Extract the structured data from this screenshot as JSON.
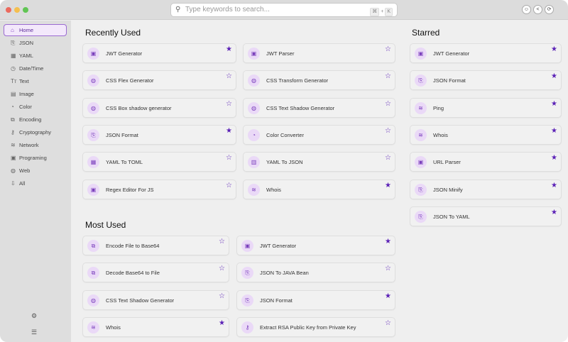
{
  "search": {
    "placeholder": "Type keywords to search...",
    "shortcut_key1": "⌘",
    "shortcut_plus": "+",
    "shortcut_key2": "K"
  },
  "toolbar": [
    {
      "icon": "feedback-icon",
      "glyph": "☺"
    },
    {
      "icon": "share-icon",
      "glyph": "<"
    },
    {
      "icon": "settings-icon",
      "glyph": "⟳"
    }
  ],
  "sidebar": {
    "items": [
      {
        "label": "Home",
        "icon": "home-icon",
        "glyph": "⌂",
        "active": true
      },
      {
        "label": "JSON",
        "icon": "json-icon",
        "glyph": "⎘"
      },
      {
        "label": "YAML",
        "icon": "yaml-icon",
        "glyph": "▦"
      },
      {
        "label": "Date/Time",
        "icon": "clock-icon",
        "glyph": "◷"
      },
      {
        "label": "Text",
        "icon": "text-icon",
        "glyph": "Tт"
      },
      {
        "label": "Image",
        "icon": "image-icon",
        "glyph": "▤"
      },
      {
        "label": "Color",
        "icon": "palette-icon",
        "glyph": "◔"
      },
      {
        "label": "Encoding",
        "icon": "encoding-icon",
        "glyph": "⧉"
      },
      {
        "label": "Cryptography",
        "icon": "key-icon",
        "glyph": "⚷"
      },
      {
        "label": "Network",
        "icon": "wifi-icon",
        "glyph": "≋"
      },
      {
        "label": "Programing",
        "icon": "terminal-icon",
        "glyph": "▣"
      },
      {
        "label": "Web",
        "icon": "globe-icon",
        "glyph": "◍"
      },
      {
        "label": "All",
        "icon": "all-icon",
        "glyph": "⇩"
      }
    ],
    "bottom": [
      {
        "icon": "gear-icon",
        "glyph": "⚙"
      },
      {
        "icon": "menu-icon",
        "glyph": "☰"
      }
    ]
  },
  "recently_used": {
    "title": "Recently Used",
    "items": [
      {
        "label": "JWT Generator",
        "glyph": "▣",
        "starred": true
      },
      {
        "label": "JWT Parser",
        "glyph": "▣",
        "starred": false
      },
      {
        "label": "CSS Flex Generator",
        "glyph": "◍",
        "starred": false
      },
      {
        "label": "CSS Transform Generator",
        "glyph": "◍",
        "starred": false
      },
      {
        "label": "CSS Box shadow generator",
        "glyph": "◍",
        "starred": false
      },
      {
        "label": "CSS Text Shadow Generator",
        "glyph": "◍",
        "starred": false
      },
      {
        "label": "JSON Format",
        "glyph": "⎘",
        "starred": true
      },
      {
        "label": "Color Converter",
        "glyph": "◔",
        "starred": false
      },
      {
        "label": "YAML To TOML",
        "glyph": "▦",
        "starred": false
      },
      {
        "label": "YAML To JSON",
        "glyph": "▥",
        "starred": false
      },
      {
        "label": "Regex Editor For JS",
        "glyph": "▣",
        "starred": false
      },
      {
        "label": "Whois",
        "glyph": "≋",
        "starred": true
      }
    ]
  },
  "most_used": {
    "title": "Most Used",
    "items": [
      {
        "label": "Encode File to Base64",
        "glyph": "⧉",
        "starred": false
      },
      {
        "label": "JWT Generator",
        "glyph": "▣",
        "starred": true
      },
      {
        "label": "Decode Base64 to File",
        "glyph": "⧉",
        "starred": false
      },
      {
        "label": "JSON To JAVA Bean",
        "glyph": "⎘",
        "starred": false
      },
      {
        "label": "CSS Text Shadow Generator",
        "glyph": "◍",
        "starred": false
      },
      {
        "label": "JSON Format",
        "glyph": "⎘",
        "starred": true
      },
      {
        "label": "Whois",
        "glyph": "≋",
        "starred": true
      },
      {
        "label": "Extract RSA Public Key from Private Key",
        "glyph": "⚷",
        "starred": false
      }
    ]
  },
  "starred": {
    "title": "Starred",
    "items": [
      {
        "label": "JWT Generator",
        "glyph": "▣",
        "starred": true
      },
      {
        "label": "JSON Format",
        "glyph": "⎘",
        "starred": true
      },
      {
        "label": "Ping",
        "glyph": "≋",
        "starred": true
      },
      {
        "label": "Whois",
        "glyph": "≋",
        "starred": true
      },
      {
        "label": "URL Parser",
        "glyph": "▣",
        "starred": true
      },
      {
        "label": "JSON Minify",
        "glyph": "⎘",
        "starred": true
      },
      {
        "label": "JSON To YAML",
        "glyph": "⎘",
        "starred": true
      }
    ]
  },
  "colors": {
    "accent": "#5b21b6",
    "icon_bg": "#ead9f7",
    "close": "#ec6a5e",
    "minimize": "#f4bf4f",
    "zoom": "#61c554"
  }
}
